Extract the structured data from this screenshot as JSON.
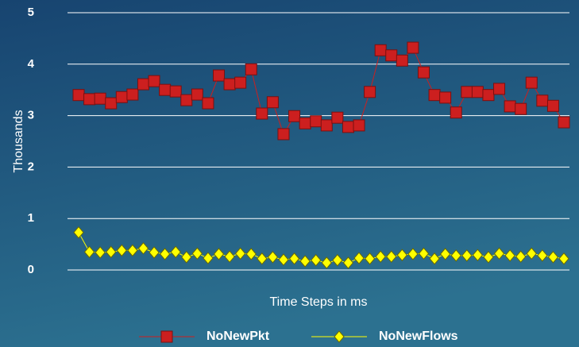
{
  "chart_data": {
    "type": "line",
    "y_label": "Thousands",
    "x_label": "Time Steps in ms",
    "ylim": [
      0,
      5
    ],
    "yticks": [
      0,
      1,
      2,
      3,
      4,
      5
    ],
    "grid": true,
    "legend": "bottom",
    "series": [
      {
        "name": "NoNewPkt",
        "color": "#cc1f1f",
        "marker": "square",
        "values": [
          3.4,
          3.32,
          3.33,
          3.24,
          3.36,
          3.41,
          3.61,
          3.67,
          3.5,
          3.47,
          3.3,
          3.41,
          3.24,
          3.78,
          3.61,
          3.64,
          3.9,
          3.04,
          3.26,
          2.64,
          2.99,
          2.85,
          2.89,
          2.81,
          2.96,
          2.78,
          2.81,
          3.46,
          4.27,
          4.17,
          4.07,
          4.32,
          3.84,
          3.4,
          3.35,
          3.06,
          3.46,
          3.46,
          3.4,
          3.52,
          3.18,
          3.13,
          3.64,
          3.29,
          3.19,
          2.87
        ]
      },
      {
        "name": "NoNewFlows",
        "color": "#ffff00",
        "marker": "diamond",
        "values": [
          0.73,
          0.35,
          0.34,
          0.35,
          0.38,
          0.38,
          0.42,
          0.34,
          0.31,
          0.35,
          0.25,
          0.32,
          0.23,
          0.31,
          0.26,
          0.32,
          0.31,
          0.22,
          0.25,
          0.2,
          0.22,
          0.17,
          0.19,
          0.14,
          0.19,
          0.14,
          0.23,
          0.22,
          0.26,
          0.26,
          0.29,
          0.31,
          0.32,
          0.22,
          0.31,
          0.28,
          0.28,
          0.29,
          0.25,
          0.32,
          0.28,
          0.26,
          0.32,
          0.28,
          0.25,
          0.22
        ]
      }
    ]
  }
}
